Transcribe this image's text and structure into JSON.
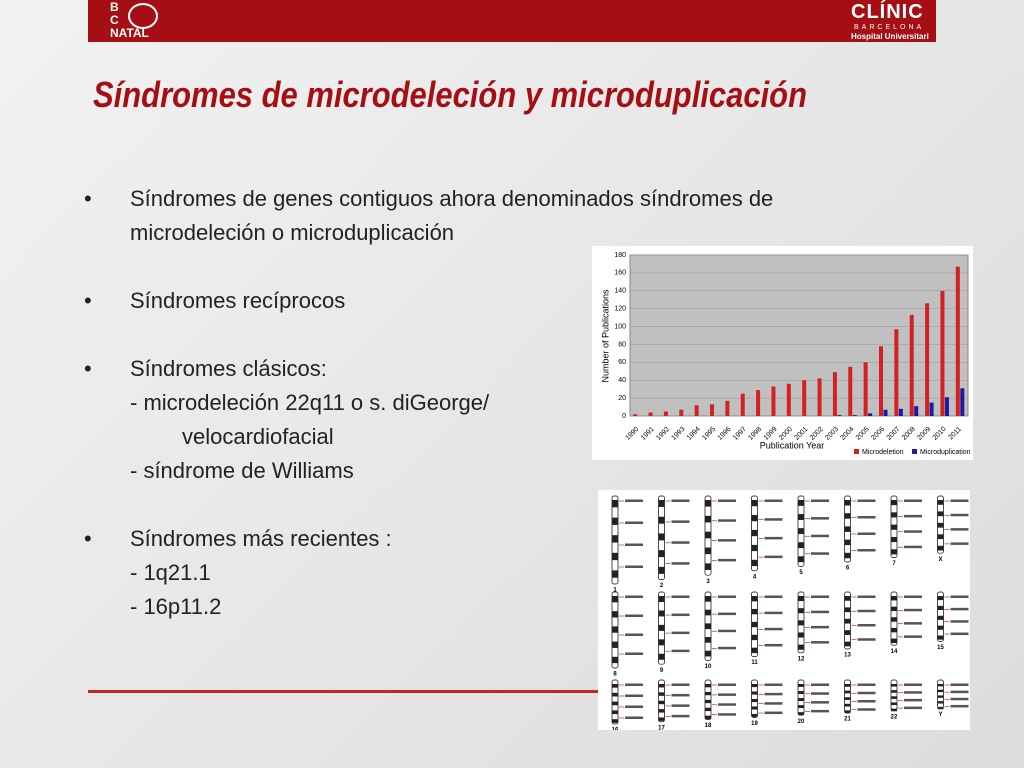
{
  "header": {
    "left_logo": [
      "B",
      "C",
      "NATAL"
    ],
    "right_logo": [
      "CLÍNIC",
      "BARCELONA",
      "Hospital Universitari"
    ]
  },
  "title": "Síndromes de microdeleción y microduplicación",
  "bullets": [
    {
      "lines": [
        "Síndromes de genes contiguos ahora denominados síndromes de",
        "microdeleción o microduplicación"
      ]
    },
    {
      "lines": [
        "Síndromes recíprocos"
      ]
    },
    {
      "lines": [
        "Síndromes clásicos:",
        "- microdeleción 22q11 o s. diGeorge/",
        "velocardiofacial",
        "- síndrome de Williams"
      ]
    },
    {
      "lines": [
        "Síndromes  más recientes :",
        "-  1q21.1",
        "- 16p11.2"
      ]
    }
  ],
  "chart_data": {
    "type": "bar",
    "y_label": "Number of Publications",
    "x_label": "Publication Year",
    "categories": [
      "1990",
      "1991",
      "1992",
      "1993",
      "1994",
      "1995",
      "1996",
      "1997",
      "1998",
      "1999",
      "2000",
      "2001",
      "2002",
      "2003",
      "2004",
      "2005",
      "2006",
      "2007",
      "2008",
      "2009",
      "2010",
      "2011"
    ],
    "series": [
      {
        "name": "Microdeletion",
        "color": "#d42020",
        "values": [
          2,
          4,
          5,
          7,
          12,
          13,
          17,
          25,
          29,
          33,
          36,
          40,
          42,
          49,
          55,
          60,
          78,
          97,
          113,
          126,
          140,
          167
        ]
      },
      {
        "name": "Microduplication",
        "color": "#1a1aa0",
        "values": [
          0,
          0,
          0,
          0,
          0,
          0,
          0,
          0,
          0,
          0,
          0,
          0,
          0,
          1,
          1,
          3,
          7,
          8,
          11,
          15,
          21,
          31
        ]
      }
    ],
    "ylim": [
      0,
      180
    ],
    "yticks": [
      0,
      20,
      40,
      60,
      80,
      100,
      120,
      140,
      160,
      180
    ],
    "grid": true,
    "legend": "bottom"
  },
  "karyotype": {
    "labels": [
      "1",
      "2",
      "3",
      "4",
      "5",
      "6",
      "7",
      "X",
      "8",
      "9",
      "10",
      "11",
      "12",
      "13",
      "14",
      "15",
      "16",
      "17",
      "18",
      "19",
      "20",
      "21",
      "22",
      "Y"
    ]
  }
}
